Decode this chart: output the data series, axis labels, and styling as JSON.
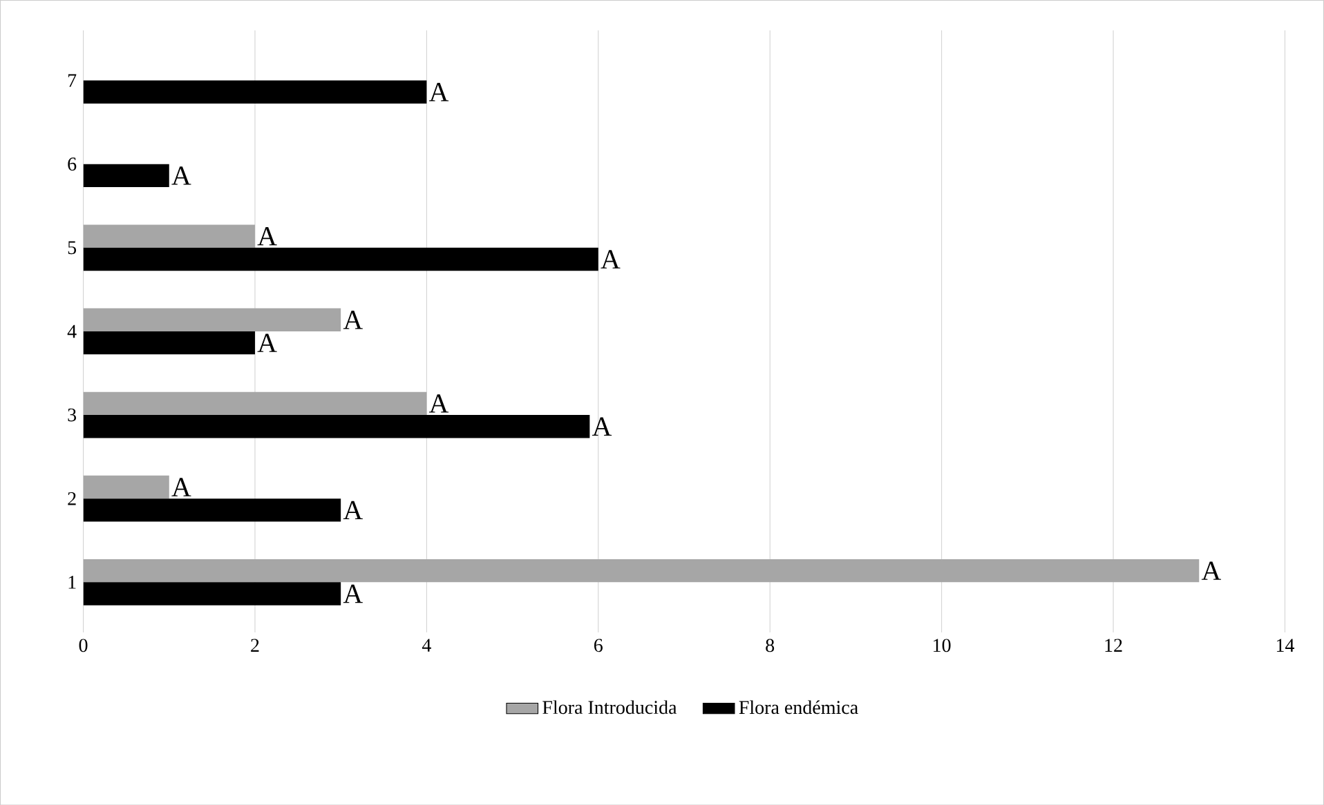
{
  "chart_data": {
    "type": "bar",
    "orientation": "horizontal",
    "categories": [
      "7",
      "6",
      "5",
      "4",
      "3",
      "2",
      "1"
    ],
    "series": [
      {
        "name": "Flora Introducida",
        "color": "#a6a6a6",
        "values": [
          null,
          null,
          2,
          3,
          4,
          1,
          13
        ],
        "value_labels": [
          null,
          null,
          "A",
          "A",
          "A",
          "A",
          "A"
        ]
      },
      {
        "name": "Flora endémica",
        "color": "#000000",
        "values": [
          4,
          1,
          6,
          2,
          5.9,
          3,
          3
        ],
        "value_labels": [
          "A",
          "A",
          "A",
          "A",
          "A",
          "A",
          "A"
        ]
      }
    ],
    "xlim": [
      0,
      14
    ],
    "xticks": [
      0,
      2,
      4,
      6,
      8,
      10,
      12,
      14
    ],
    "grid": "x",
    "legend": "bottom"
  }
}
